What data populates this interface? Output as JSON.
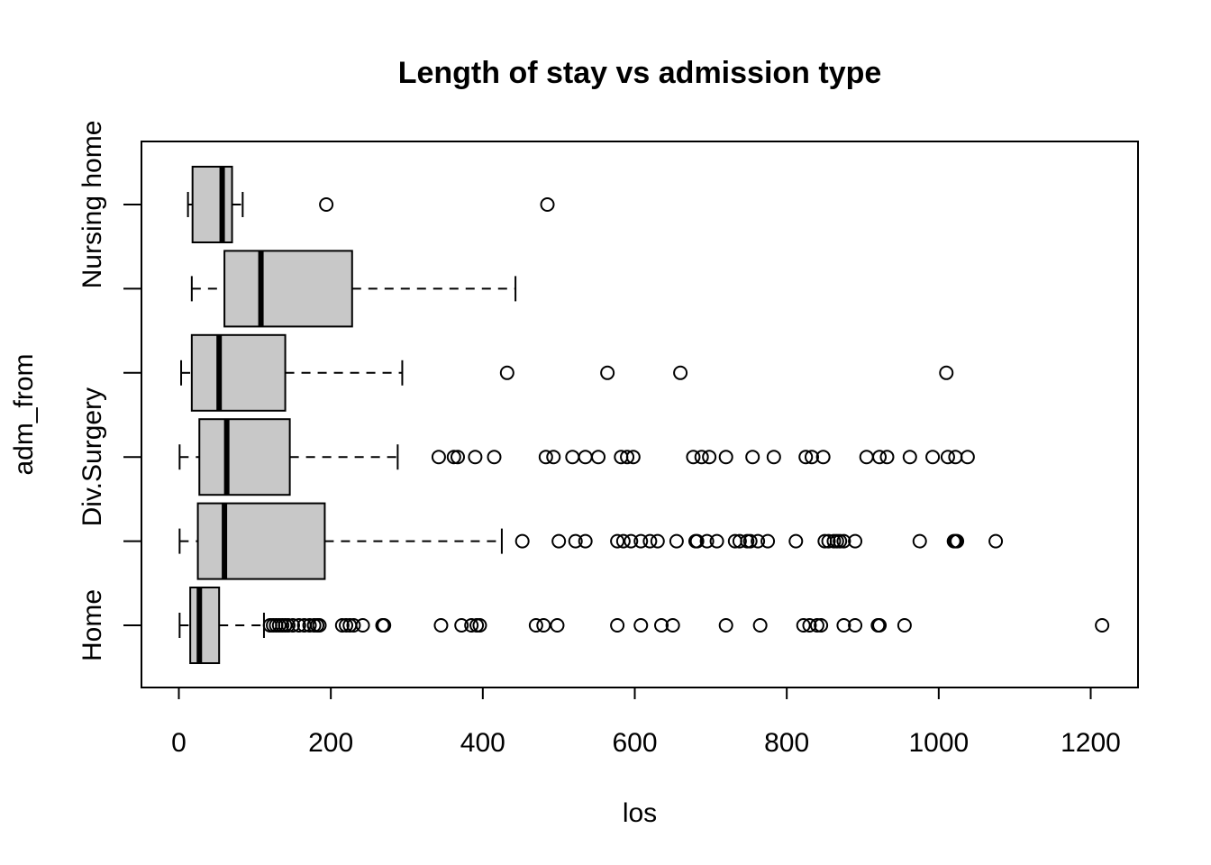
{
  "chart_data": {
    "type": "boxplot",
    "orientation": "horizontal",
    "title": "Length of stay vs admission type",
    "xlabel": "los",
    "ylabel": "adm_from",
    "xlim": [
      -20,
      1250
    ],
    "x_ticks": [
      0,
      200,
      400,
      600,
      800,
      1000,
      1200
    ],
    "y_tick_labels": [
      "Home",
      "",
      "Div.Surgery",
      "",
      "",
      "Nursing home"
    ],
    "box_fill": "#c8c8c8",
    "groups": [
      {
        "label": "Home",
        "whisker_low": 1,
        "q1": 15,
        "median": 27,
        "q3": 53,
        "whisker_high": 112,
        "outliers": [
          120,
          124,
          128,
          132,
          136,
          140,
          144,
          150,
          158,
          165,
          172,
          178,
          182,
          185,
          215,
          220,
          225,
          230,
          242,
          268,
          270,
          345,
          372,
          385,
          392,
          396,
          470,
          480,
          498,
          577,
          608,
          635,
          650,
          720,
          765,
          822,
          830,
          840,
          845,
          875,
          890,
          920,
          922,
          955,
          1215
        ]
      },
      {
        "label": "",
        "whisker_low": 1,
        "q1": 25,
        "median": 60,
        "q3": 192,
        "whisker_high": 425,
        "outliers": [
          452,
          500,
          522,
          535,
          577,
          585,
          595,
          608,
          620,
          630,
          655,
          680,
          682,
          695,
          708,
          732,
          738,
          748,
          752,
          762,
          775,
          812,
          850,
          855,
          862,
          866,
          870,
          875,
          890,
          975,
          1020,
          1022,
          1024,
          1075
        ]
      },
      {
        "label": "Div.Surgery",
        "whisker_low": 1,
        "q1": 27,
        "median": 63,
        "q3": 146,
        "whisker_high": 288,
        "outliers": [
          342,
          362,
          367,
          390,
          415,
          483,
          493,
          518,
          535,
          552,
          582,
          590,
          598,
          677,
          688,
          698,
          720,
          755,
          783,
          825,
          833,
          848,
          905,
          922,
          932,
          962,
          992,
          1012,
          1022,
          1038
        ]
      },
      {
        "label": "",
        "whisker_low": 3,
        "q1": 17,
        "median": 53,
        "q3": 140,
        "whisker_high": 294,
        "outliers": [
          432,
          564,
          660,
          1010
        ]
      },
      {
        "label": "",
        "whisker_low": 17,
        "q1": 60,
        "median": 108,
        "q3": 228,
        "whisker_high": 443,
        "outliers": []
      },
      {
        "label": "Nursing home",
        "whisker_low": 12,
        "q1": 18,
        "median": 57,
        "q3": 70,
        "whisker_high": 84,
        "outliers": [
          194,
          485
        ]
      }
    ]
  }
}
